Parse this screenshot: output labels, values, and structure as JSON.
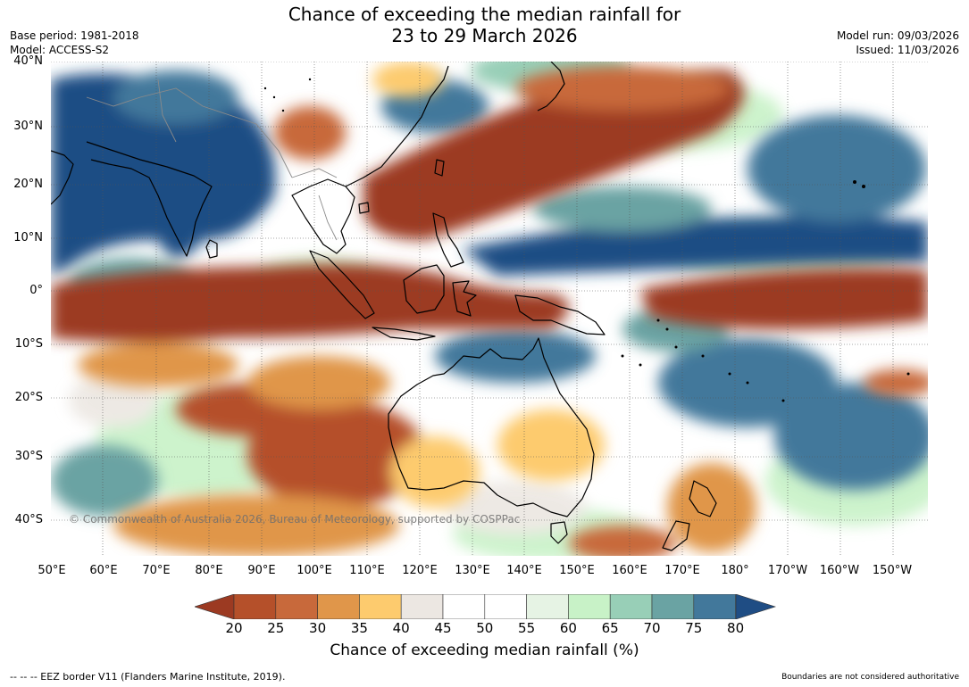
{
  "title": {
    "line1": "Chance of exceeding the median rainfall for",
    "line2": "23 to 29 March 2026"
  },
  "meta_left": {
    "base_period": "Base period: 1981-2018",
    "model": "Model: ACCESS-S2"
  },
  "meta_right": {
    "model_run": "Model run: 09/03/2026",
    "issued": "Issued: 11/03/2026"
  },
  "map": {
    "latitude_labels": [
      "40°N",
      "30°N",
      "20°N",
      "10°N",
      "0°",
      "10°S",
      "20°S",
      "30°S",
      "40°S"
    ],
    "longitude_labels": [
      "50°E",
      "60°E",
      "70°E",
      "80°E",
      "90°E",
      "100°E",
      "110°E",
      "120°E",
      "130°E",
      "140°E",
      "150°E",
      "160°E",
      "170°E",
      "180°",
      "170°W",
      "160°W",
      "150°W"
    ],
    "copyright": "© Commonwealth of Australia 2026, Bureau of Meteorology, supported by COSPPac"
  },
  "colorbar": {
    "ticks": [
      "20",
      "25",
      "30",
      "35",
      "40",
      "45",
      "50",
      "55",
      "60",
      "65",
      "70",
      "75",
      "80"
    ],
    "colors": [
      "#9c3a22",
      "#b5502a",
      "#c8693b",
      "#e0964a",
      "#fdcb6e",
      "#ece7e2",
      "#ffffff",
      "#ffffff",
      "#e6f3e4",
      "#c8f2c7",
      "#98cfb7",
      "#6aa3a3",
      "#42789b",
      "#1f4d84"
    ],
    "label": "Chance of exceeding median rainfall (%)"
  },
  "footer": {
    "left": "--  --  -- EEZ border V11 (Flanders Marine Institute, 2019).",
    "right": "Boundaries are not considered authoritative"
  }
}
